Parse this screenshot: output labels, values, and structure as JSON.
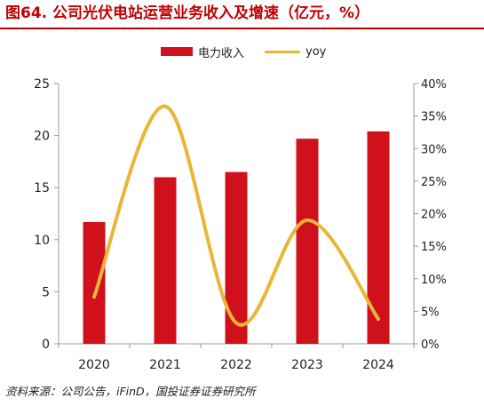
{
  "title": "图64. 公司光伏电站运营业务收入及增速（亿元，%）",
  "source": "资料来源：公司公告，iFinD，国投证券证券研究所",
  "colors": {
    "bar": "#d0111b",
    "line": "#e9b637",
    "title": "#c00000",
    "axis": "#999999"
  },
  "chart_data": {
    "type": "bar+line",
    "categories": [
      "2020",
      "2021",
      "2022",
      "2023",
      "2024"
    ],
    "series": [
      {
        "name": "电力收入",
        "type": "bar",
        "axis": "left",
        "values": [
          11.7,
          16.0,
          16.5,
          19.7,
          20.4
        ]
      },
      {
        "name": "yoy",
        "type": "line",
        "axis": "right",
        "values": [
          7.2,
          36.5,
          3.2,
          19.0,
          3.8
        ]
      }
    ],
    "y_left": {
      "min": 0,
      "max": 25,
      "ticks": [
        "0",
        "5",
        "10",
        "15",
        "20",
        "25"
      ]
    },
    "y_right": {
      "min": 0,
      "max": 40,
      "ticks": [
        "0%",
        "5%",
        "10%",
        "15%",
        "20%",
        "25%",
        "30%",
        "35%",
        "40%"
      ]
    },
    "legend": "top-center",
    "grid": false
  }
}
